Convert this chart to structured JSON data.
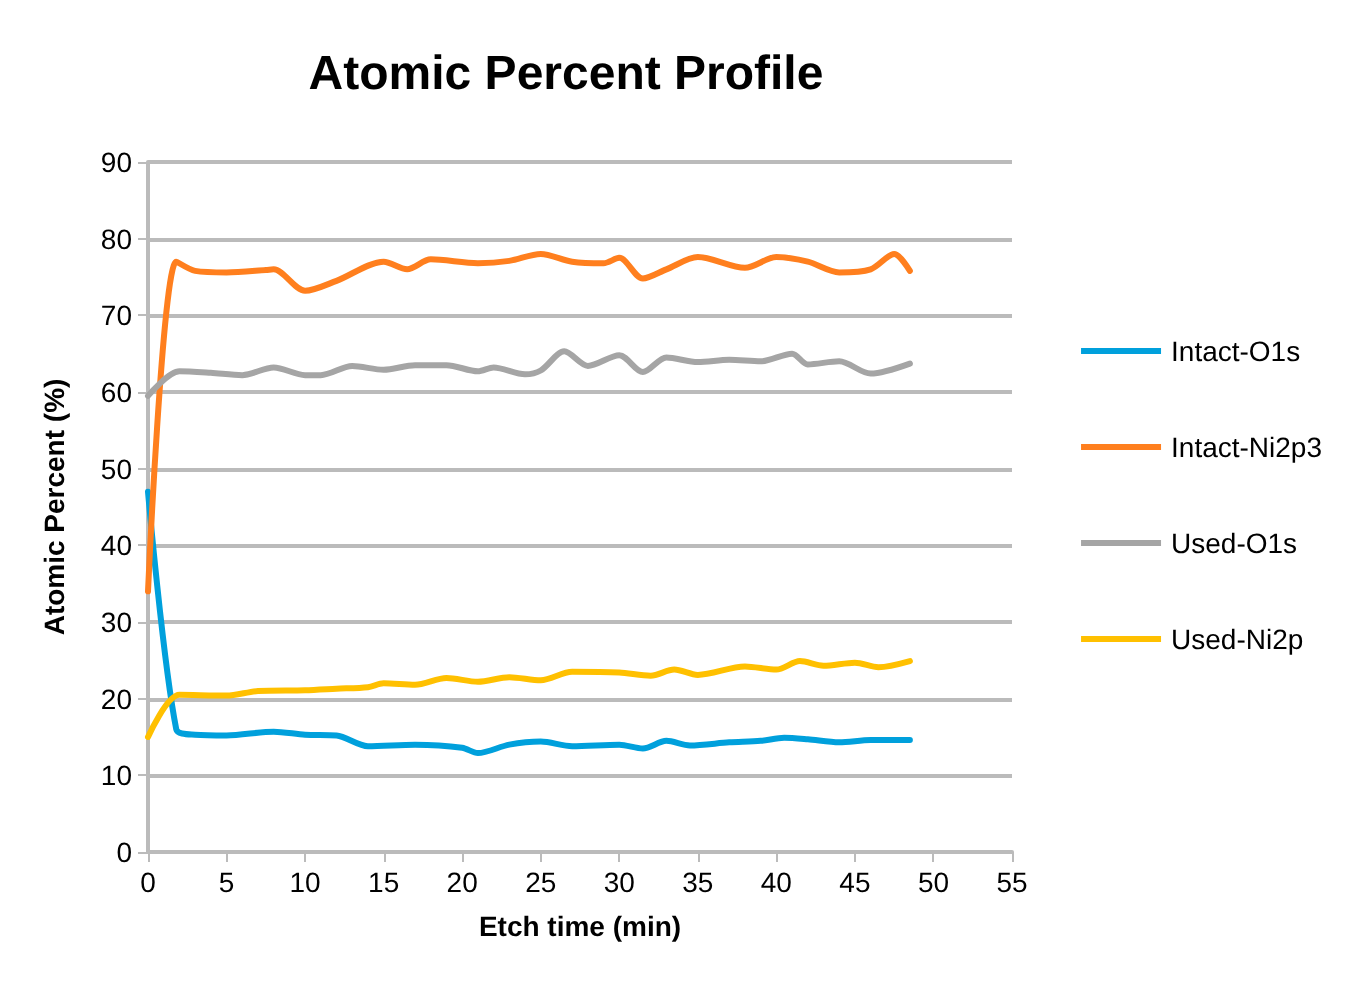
{
  "chart_data": {
    "type": "line",
    "title": "Atomic Percent Profile",
    "xlabel": "Etch time (min)",
    "ylabel": "Atomic Percent (%)",
    "xlim": [
      0,
      55
    ],
    "xticks": [
      0,
      5,
      10,
      15,
      20,
      25,
      30,
      35,
      40,
      45,
      50,
      55
    ],
    "ylim": [
      0,
      90
    ],
    "yticks": [
      0,
      10,
      20,
      30,
      40,
      50,
      60,
      70,
      80,
      90
    ],
    "grid": "y",
    "legend": "right",
    "marker": "none",
    "line_style": "solid",
    "series": [
      {
        "name": "Intact-O1s",
        "color": "#00a0dc",
        "x": [
          0,
          1.8,
          3,
          5,
          8,
          10,
          12,
          14,
          17,
          20,
          21,
          23,
          25,
          27,
          30,
          31.5,
          33,
          34.5,
          37,
          39,
          40.5,
          42,
          44,
          46,
          48.5
        ],
        "values": [
          47,
          16,
          15.3,
          15.2,
          15.7,
          15.3,
          15.2,
          13.8,
          14,
          13.6,
          12.9,
          14,
          14.4,
          13.8,
          14,
          13.5,
          14.5,
          13.9,
          14.3,
          14.5,
          14.9,
          14.7,
          14.3,
          14.6,
          14.6
        ]
      },
      {
        "name": "Intact-Ni2p3",
        "color": "#ff7f1e",
        "x": [
          0,
          1.8,
          3,
          5,
          7.5,
          8,
          10,
          12,
          15,
          16.5,
          18,
          21,
          23,
          25,
          27,
          29,
          30,
          31.5,
          33,
          35,
          38,
          40,
          42,
          44,
          46,
          47.5,
          48.5
        ],
        "values": [
          34,
          77,
          75.8,
          75.6,
          75.9,
          76,
          73.2,
          74.5,
          77,
          76,
          77.3,
          76.8,
          77.1,
          78,
          77,
          76.8,
          77.5,
          74.8,
          76,
          77.6,
          76.2,
          77.6,
          77,
          75.6,
          76,
          78,
          75.8
        ]
      },
      {
        "name": "Used-O1s",
        "color": "#a5a5a5",
        "x": [
          0,
          2,
          4,
          6,
          8,
          10,
          11,
          13,
          15,
          17,
          19,
          21,
          22,
          24,
          25,
          26.5,
          28,
          30,
          31.5,
          33,
          35,
          37,
          39,
          41,
          42,
          44,
          46,
          48.5
        ],
        "values": [
          59.5,
          62.7,
          62.5,
          62.2,
          63.2,
          62.2,
          62.2,
          63.4,
          62.9,
          63.5,
          63.5,
          62.7,
          63.2,
          62.3,
          62.8,
          65.3,
          63.4,
          64.8,
          62.6,
          64.5,
          63.9,
          64.2,
          64,
          65,
          63.6,
          64,
          62.4,
          63.7
        ]
      },
      {
        "name": "Used-Ni2p",
        "color": "#ffc000",
        "x": [
          0,
          2,
          5,
          7,
          10,
          12,
          14,
          15,
          17,
          19,
          21,
          23,
          25,
          27,
          30,
          32,
          33.5,
          35,
          38,
          40,
          41.5,
          43,
          45,
          46.5,
          48.5
        ],
        "values": [
          15,
          20.5,
          20.4,
          21,
          21.1,
          21.3,
          21.5,
          22,
          21.8,
          22.7,
          22.2,
          22.8,
          22.4,
          23.5,
          23.4,
          23,
          23.8,
          23.1,
          24.2,
          23.8,
          24.9,
          24.3,
          24.7,
          24.1,
          24.9
        ]
      }
    ]
  }
}
